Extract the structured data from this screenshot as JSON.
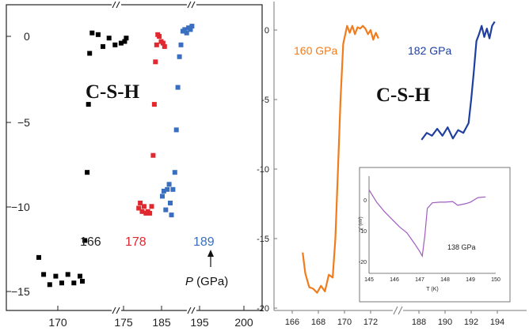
{
  "panels": [
    {
      "title": "C-S-H",
      "xlabel": "",
      "ylabel": "",
      "xticks": [
        "170",
        "175",
        "185",
        "195",
        "200"
      ],
      "yticks": [
        "0",
        "−5",
        "−10",
        "−15"
      ],
      "annotation": {
        "label": "P",
        "unit": " (GPa)"
      }
    },
    {
      "title": "C-S-H",
      "xlabel": "",
      "ylabel": "",
      "xticks": [
        "166",
        "168",
        "170",
        "172",
        "188",
        "190",
        "192",
        "194"
      ],
      "yticks": [
        "0",
        "-5",
        "-10",
        "-15",
        "-20"
      ],
      "inset": {
        "xlabel": "T (K)",
        "ylabel": "χ' (nV)",
        "xticks": [
          "145",
          "146",
          "147",
          "148",
          "149",
          "150"
        ],
        "yticks": [
          "0",
          "-10",
          "-20"
        ],
        "label": "138 GPa"
      }
    }
  ],
  "chart_data": [
    {
      "type": "scatter",
      "title": "C-S-H",
      "axis_breaks": [
        "175-185",
        "185-195"
      ],
      "ylim": [
        -15.5,
        0.8
      ],
      "series": [
        {
          "name": "166",
          "color": "#000000",
          "points": [
            [
              168.0,
              -13.0
            ],
            [
              168.4,
              -14.0
            ],
            [
              168.9,
              -14.6
            ],
            [
              169.4,
              -14.1
            ],
            [
              169.9,
              -14.5
            ],
            [
              170.4,
              -14.0
            ],
            [
              170.9,
              -14.5
            ],
            [
              171.4,
              -14.1
            ],
            [
              171.6,
              -14.4
            ],
            [
              171.8,
              -12.0
            ],
            [
              172.0,
              -8.0
            ],
            [
              172.1,
              -4.0
            ],
            [
              172.2,
              -1.0
            ],
            [
              172.4,
              0.2
            ],
            [
              172.9,
              0.1
            ],
            [
              173.3,
              -0.6
            ],
            [
              173.8,
              -0.1
            ],
            [
              174.3,
              -0.5
            ],
            [
              174.8,
              -0.4
            ],
            [
              175.3,
              -0.3
            ],
            [
              175.7,
              -0.1
            ]
          ]
        },
        {
          "name": "178",
          "color": "#e0282e",
          "points": [
            [
              179.0,
              -10.1
            ],
            [
              179.4,
              -9.8
            ],
            [
              179.9,
              -10.3
            ],
            [
              180.4,
              -10.0
            ],
            [
              180.9,
              -10.4
            ],
            [
              181.4,
              -10.3
            ],
            [
              181.9,
              -10.4
            ],
            [
              182.4,
              -10.0
            ],
            [
              182.8,
              -7.0
            ],
            [
              183.1,
              -4.0
            ],
            [
              183.4,
              -1.5
            ],
            [
              183.7,
              -0.5
            ],
            [
              184.0,
              0.1
            ],
            [
              184.4,
              0.0
            ],
            [
              184.9,
              -0.3
            ],
            [
              185.4,
              -0.4
            ],
            [
              185.8,
              -0.6
            ]
          ]
        },
        {
          "name": "189",
          "color": "#3a6fc0",
          "points": [
            [
              185.2,
              -9.4
            ],
            [
              185.6,
              -9.1
            ],
            [
              186.1,
              -10.2
            ],
            [
              186.5,
              -9.0
            ],
            [
              187.0,
              -8.7
            ],
            [
              187.3,
              -9.8
            ],
            [
              187.6,
              -10.5
            ],
            [
              188.0,
              -9.0
            ],
            [
              188.5,
              -8.0
            ],
            [
              188.9,
              -5.5
            ],
            [
              189.3,
              -3.0
            ],
            [
              189.7,
              -1.2
            ],
            [
              190.1,
              -0.5
            ],
            [
              190.6,
              0.3
            ],
            [
              191.1,
              0.4
            ],
            [
              191.6,
              0.2
            ],
            [
              192.1,
              0.5
            ],
            [
              192.6,
              0.4
            ],
            [
              193.0,
              0.6
            ]
          ]
        }
      ]
    },
    {
      "type": "line",
      "title": "C-S-H",
      "axis_breaks": [
        "173-188"
      ],
      "ylim": [
        -20,
        0.5
      ],
      "series": [
        {
          "name": "160 GPa",
          "color": "#f07c1c",
          "points": [
            [
              166.8,
              -16.0
            ],
            [
              167.0,
              -17.5
            ],
            [
              167.3,
              -18.5
            ],
            [
              167.6,
              -18.6
            ],
            [
              167.9,
              -18.9
            ],
            [
              168.2,
              -18.4
            ],
            [
              168.5,
              -18.8
            ],
            [
              168.8,
              -17.6
            ],
            [
              169.1,
              -17.8
            ],
            [
              169.3,
              -15.0
            ],
            [
              169.5,
              -10.0
            ],
            [
              169.7,
              -5.0
            ],
            [
              169.9,
              -1.0
            ],
            [
              170.2,
              0.3
            ],
            [
              170.4,
              -0.2
            ],
            [
              170.6,
              0.3
            ],
            [
              170.8,
              -0.3
            ],
            [
              171.0,
              0.2
            ],
            [
              171.2,
              0.1
            ],
            [
              171.4,
              0.3
            ],
            [
              171.6,
              0.1
            ],
            [
              171.8,
              -0.3
            ],
            [
              172.0,
              0.0
            ],
            [
              172.2,
              -0.7
            ],
            [
              172.4,
              -0.2
            ],
            [
              172.6,
              -0.6
            ]
          ]
        },
        {
          "name": "182 GPa",
          "color": "#1f3fa0",
          "points": [
            [
              188.2,
              -7.9
            ],
            [
              188.6,
              -7.4
            ],
            [
              189.0,
              -7.6
            ],
            [
              189.4,
              -7.1
            ],
            [
              189.8,
              -7.6
            ],
            [
              190.2,
              -7.0
            ],
            [
              190.6,
              -7.8
            ],
            [
              191.0,
              -7.2
            ],
            [
              191.4,
              -7.4
            ],
            [
              191.8,
              -6.7
            ],
            [
              192.0,
              -5.0
            ],
            [
              192.2,
              -3.0
            ],
            [
              192.4,
              -0.8
            ],
            [
              192.6,
              -0.3
            ],
            [
              192.8,
              0.3
            ],
            [
              193.0,
              -0.5
            ],
            [
              193.2,
              0.1
            ],
            [
              193.4,
              -0.6
            ],
            [
              193.6,
              0.3
            ],
            [
              193.8,
              0.6
            ]
          ]
        }
      ],
      "inset": {
        "type": "line",
        "series": [
          {
            "name": "138 GPa",
            "color": "#a15cc2",
            "points": [
              [
                145.0,
                3.0
              ],
              [
                145.3,
                -1.0
              ],
              [
                145.6,
                -4.0
              ],
              [
                145.9,
                -6.5
              ],
              [
                146.2,
                -9.0
              ],
              [
                146.5,
                -11.0
              ],
              [
                146.8,
                -14.5
              ],
              [
                147.0,
                -17.0
              ],
              [
                147.1,
                -18.5
              ],
              [
                147.2,
                -12.0
              ],
              [
                147.3,
                -3.0
              ],
              [
                147.5,
                -1.2
              ],
              [
                147.8,
                -1.0
              ],
              [
                148.0,
                -1.0
              ],
              [
                148.3,
                -0.8
              ],
              [
                148.5,
                -2.0
              ],
              [
                148.8,
                -1.5
              ],
              [
                149.0,
                -1.0
              ],
              [
                149.3,
                0.5
              ],
              [
                149.6,
                0.7
              ]
            ]
          }
        ]
      }
    }
  ]
}
